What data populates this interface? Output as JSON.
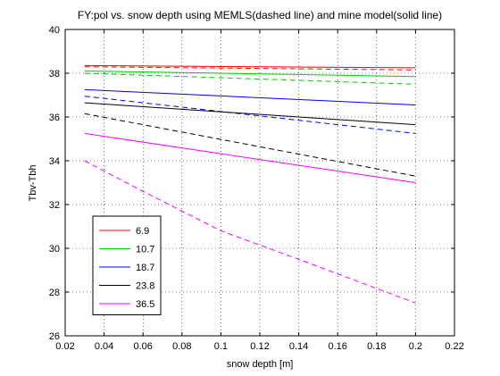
{
  "chart_data": {
    "type": "line",
    "title": "FY:pol vs. snow depth using MEMLS(dashed line) and mine model(solid line)",
    "xlabel": "snow depth [m]",
    "ylabel": "Tbv-Tbh",
    "xlim": [
      0.02,
      0.22
    ],
    "ylim": [
      26,
      40
    ],
    "xticks": [
      0.02,
      0.04,
      0.06,
      0.08,
      0.1,
      0.12,
      0.14,
      0.16,
      0.18,
      0.2,
      0.22
    ],
    "xtick_labels": [
      "0.02",
      "0.04",
      "0.06",
      "0.08",
      "0.1",
      "0.12",
      "0.14",
      "0.16",
      "0.18",
      "0.2",
      "0.22"
    ],
    "yticks": [
      26,
      28,
      30,
      32,
      34,
      36,
      38,
      40
    ],
    "ytick_labels": [
      "26",
      "28",
      "30",
      "32",
      "34",
      "36",
      "38",
      "40"
    ],
    "grid": true,
    "legend_position": "bottom-left",
    "series": [
      {
        "name": "6.9",
        "color": "#ff0000",
        "style": "solid",
        "x": [
          0.03,
          0.2
        ],
        "y": [
          38.35,
          38.25
        ]
      },
      {
        "name": "6.9",
        "color": "#ff0000",
        "style": "dashed",
        "x": [
          0.03,
          0.2
        ],
        "y": [
          38.3,
          38.15
        ]
      },
      {
        "name": "10.7",
        "color": "#00cc00",
        "style": "solid",
        "x": [
          0.03,
          0.2
        ],
        "y": [
          38.1,
          37.85
        ]
      },
      {
        "name": "10.7",
        "color": "#00cc00",
        "style": "dashed",
        "x": [
          0.03,
          0.2
        ],
        "y": [
          38.0,
          37.5
        ]
      },
      {
        "name": "18.7",
        "color": "#0000ff",
        "style": "solid",
        "x": [
          0.03,
          0.2
        ],
        "y": [
          37.25,
          36.55
        ]
      },
      {
        "name": "18.7",
        "color": "#0000ff",
        "style": "dashed",
        "x": [
          0.03,
          0.2
        ],
        "y": [
          36.95,
          35.25
        ]
      },
      {
        "name": "23.8",
        "color": "#000000",
        "style": "solid",
        "x": [
          0.03,
          0.2
        ],
        "y": [
          36.65,
          35.65
        ]
      },
      {
        "name": "23.8",
        "color": "#000000",
        "style": "dashed",
        "x": [
          0.03,
          0.2
        ],
        "y": [
          36.15,
          33.3
        ]
      },
      {
        "name": "36.5",
        "color": "#ff00ff",
        "style": "solid",
        "x": [
          0.03,
          0.2
        ],
        "y": [
          35.25,
          33.0
        ]
      },
      {
        "name": "36.5",
        "color": "#ff00ff",
        "style": "dashed",
        "x": [
          0.03,
          0.06,
          0.1,
          0.14,
          0.2
        ],
        "y": [
          34.0,
          32.6,
          30.8,
          29.5,
          27.5
        ]
      }
    ],
    "legend": [
      {
        "label": "6.9",
        "color": "#ff0000"
      },
      {
        "label": "10.7",
        "color": "#00cc00"
      },
      {
        "label": "18.7",
        "color": "#0000ff"
      },
      {
        "label": "23.8",
        "color": "#000000"
      },
      {
        "label": "36.5",
        "color": "#ff00ff"
      }
    ]
  }
}
